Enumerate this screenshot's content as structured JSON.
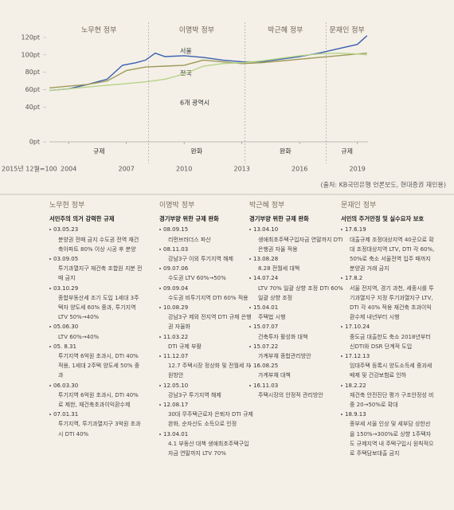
{
  "chart_data": {
    "type": "line",
    "base_note": "2015년 12월=100",
    "source": "(출처: KB국민은행 언론보도, 현대증권 재인용)",
    "xlim": [
      2003,
      2019.55
    ],
    "xticks": [
      2004,
      2007,
      2010,
      2013,
      2016,
      2019
    ],
    "ylim": [
      0,
      120
    ],
    "yticks": [
      {
        "value": 0,
        "label": "0pt"
      },
      {
        "value": 40,
        "label": "40pt"
      },
      {
        "value": 60,
        "label": "60pt"
      },
      {
        "value": 80,
        "label": "80pt"
      },
      {
        "value": 100,
        "label": "100pt"
      },
      {
        "value": 120,
        "label": "120pt"
      }
    ],
    "boundaries": [
      2008.15,
      2013.15,
      2017.37
    ],
    "periods": [
      {
        "name": "노무현 정부",
        "policy": "규제"
      },
      {
        "name": "이명박 정부",
        "policy": "완화"
      },
      {
        "name": "박근혜 정부",
        "policy": "완화"
      },
      {
        "name": "문재인 정부",
        "policy": "규제"
      }
    ],
    "series": [
      {
        "name": "서울",
        "color": "#3b5fae",
        "x": [
          2003,
          2004,
          2005,
          2006,
          2006.8,
          2007.5,
          2008,
          2008.5,
          2009,
          2010,
          2011,
          2012,
          2013,
          2014,
          2015,
          2016,
          2017,
          2018,
          2019,
          2019.5
        ],
        "values": [
          59,
          61,
          66,
          72,
          88,
          91,
          94,
          102,
          98,
          99,
          97,
          94,
          92,
          92,
          95,
          98,
          102,
          107,
          112,
          122
        ]
      },
      {
        "name": "전국",
        "color": "#9c9a58",
        "x": [
          2003,
          2004,
          2005,
          2006,
          2007,
          2008,
          2009,
          2010,
          2011,
          2012,
          2013,
          2014,
          2015,
          2016,
          2017,
          2018,
          2019,
          2019.5
        ],
        "values": [
          62,
          64,
          66,
          70,
          82,
          86,
          87,
          88,
          94,
          92,
          90,
          91,
          93,
          95,
          97,
          99,
          101,
          102
        ]
      },
      {
        "name": "6개 광역시",
        "color": "#b7d38a",
        "x": [
          2003,
          2004,
          2005,
          2006,
          2007,
          2008,
          2009,
          2010,
          2011,
          2012,
          2013,
          2014,
          2015,
          2016,
          2017,
          2018,
          2019,
          2019.5
        ],
        "values": [
          59,
          61,
          63,
          65,
          67,
          69,
          72,
          78,
          87,
          90,
          91,
          93,
          96,
          99,
          101,
          102,
          101,
          100
        ]
      }
    ]
  },
  "policies": [
    {
      "name": "노무현 정부",
      "summary": "서민주의 의거 강력한 규제",
      "items": [
        {
          "date": "03.05.23",
          "text": "분양권 전매 금지 수도권 전역 재건축아파트 80% 이상 시공 후 분양"
        },
        {
          "date": "03.09.05",
          "text": "투기과열지구 재건축 조합원 지분 전매 금지"
        },
        {
          "date": "03.10.29",
          "text": "종합부동산세 조기 도입 1세대 3주택자 양도세 60% 중과, 투기지역 LTV 50%→40%"
        },
        {
          "date": "05.06.30",
          "text": "LTV 60%→40%"
        },
        {
          "date": "05. 8.31",
          "text": "투기지역 6억원 초과시, DTI 40% 적용, 1세대 2주택 양도세 50% 중과"
        },
        {
          "date": "06.03.30",
          "text": "투기지역 6억원 초과시, DTI 40%로 제한, 재건축초과이익환수제"
        },
        {
          "date": "07.01.31",
          "text": "투기지역, 투기과열지구 3억원 초과시 DTI 40%"
        }
      ]
    },
    {
      "name": "이명박 정부",
      "summary": "경기부양 위한 규제 완화",
      "items": [
        {
          "date": "08.09.15",
          "text": "리먼브러더스 파산"
        },
        {
          "date": "08.11.03",
          "text": "강남3구 이외 투기지역 해제"
        },
        {
          "date": "09.07.06",
          "text": "수도권 LTV 60%→50%"
        },
        {
          "date": "09.09.04",
          "text": "수도권 비투기지역 DTI 60% 적용"
        },
        {
          "date": "10.08.29",
          "text": "강남3구 제외 전지역 DTI 규제 은행권 자율화"
        },
        {
          "date": "11.03.22",
          "text": "DTI 규제 부활"
        },
        {
          "date": "11.12.07",
          "text": "12.7 주택시장 정상화 및 전월세 지원방안"
        },
        {
          "date": "12.05.10",
          "text": "강남3구 투기지역 해제"
        },
        {
          "date": "12.08.17",
          "text": "30대 무주택근로자 은퇴자 DTI 규제 완화, 순자산도 소득으로 인정"
        },
        {
          "date": "13.04.01",
          "text": "4.1 부동산 대책 생애최초주택구입자금 연말까지 LTV 70%"
        }
      ]
    },
    {
      "name": "박근혜 정부",
      "summary": "경기부양 위한 규제 완화",
      "items": [
        {
          "date": "13.04.10",
          "text": "생애최초주택구입자금 연말까지 DTI 은행권 자율 적용"
        },
        {
          "date": "13.08.28",
          "text": "8.28 전월세 대책"
        },
        {
          "date": "14.07.24",
          "text": "LTV 70% 일괄 상향 조정 DTI 60% 일괄 상향 조정"
        },
        {
          "date": "15.04.01",
          "text": "주택법 시행"
        },
        {
          "date": "15.07.07",
          "text": "건축투자 활성화 대책"
        },
        {
          "date": "15.07.22",
          "text": "가계부채 종합관리방안"
        },
        {
          "date": "16.08.25",
          "text": "가계부채 대책"
        },
        {
          "date": "16.11.03",
          "text": "주택시장의 안정적 관리방안"
        }
      ]
    },
    {
      "name": "문재인 정부",
      "summary": "서민의 주거안정 및 실수요자 보호",
      "items": [
        {
          "date": "17.6.19",
          "text": "대출규제 조정대상지역 40곳으로 확대 조정대상지역 LTV, DTI 각 60%, 50%로 축소 서울전역 입주 때까지 분양권 거래 금지"
        },
        {
          "date": "17.8.2",
          "text": "서울 전지역, 경기 과천, 세종시를 투기과열지구 지정 투기과열지구 LTV, DTI 각 40% 적용 재건축 초과이익환수제 내년부터 시행"
        },
        {
          "date": "17.10.24",
          "text": "중도금 대출한도 축소 2018년부터 신DTI와 DSR 단계적 도입"
        },
        {
          "date": "17.12.13",
          "text": "임대주택 등록시 양도소득세 중과세 배제 및 건강보험료 인하"
        },
        {
          "date": "18.2.22",
          "text": "재건축 안전진단 평가 구조안정성 비중 20→50%로 확대"
        },
        {
          "date": "18.9.13",
          "text": "종부세 서울 인상 및 세부담 상한선을 150%→300%로 상향 1주택자도 규제지역 내 주택구입시 원칙적으로 주택담보대출 금지"
        }
      ]
    }
  ]
}
